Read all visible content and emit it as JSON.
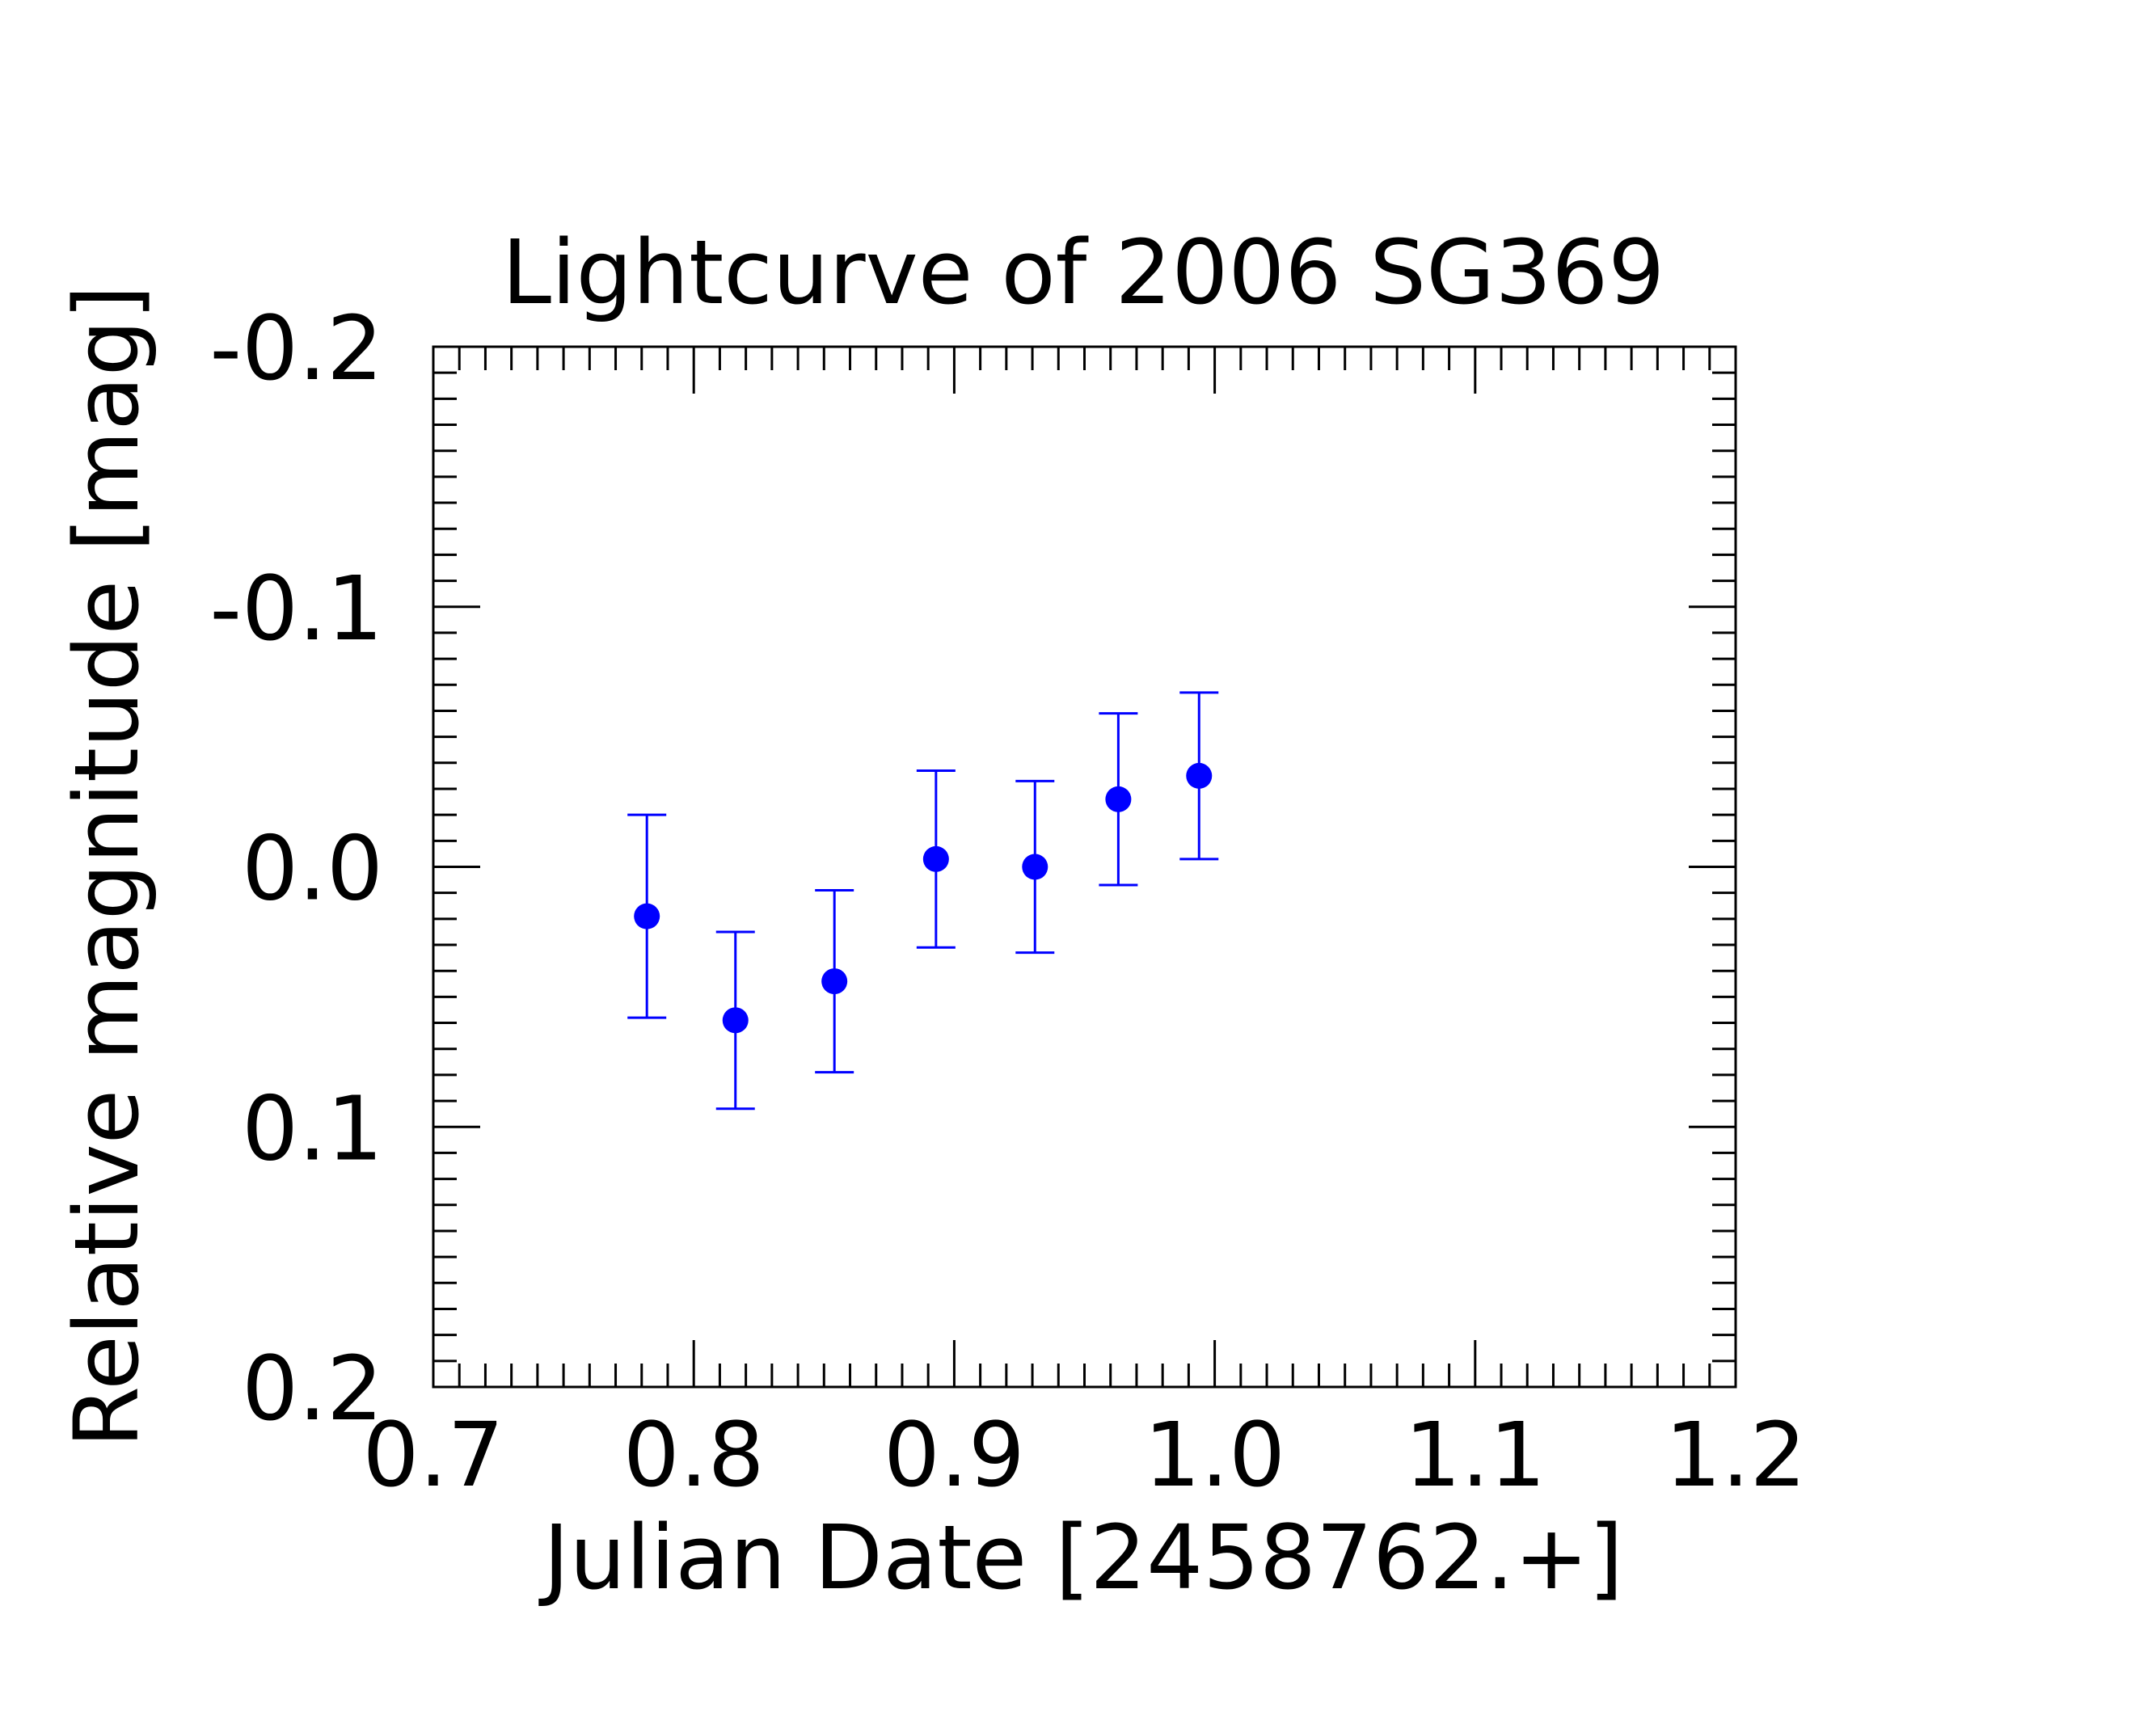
{
  "chart_data": {
    "type": "scatter",
    "title": "Lightcurve of 2006 SG369",
    "xlabel": "Julian Date [2458762.+]",
    "ylabel": "Relative magnitude [mag]",
    "xlim": [
      0.7,
      1.2
    ],
    "ylim": [
      0.2,
      -0.2
    ],
    "y_inverted": true,
    "grid": false,
    "legend": "none",
    "x_ticks": [
      "0.7",
      "0.8",
      "0.9",
      "1.0",
      "1.1",
      "1.2"
    ],
    "y_ticks": [
      "-0.2",
      "-0.1",
      "0.0",
      "0.1",
      "0.2"
    ],
    "marker_color": "#0000ff",
    "series": [
      {
        "x": [
          0.782,
          0.816,
          0.854,
          0.893,
          0.931,
          0.963,
          0.994
        ],
        "y": [
          0.019,
          0.059,
          0.044,
          -0.003,
          0.0,
          -0.026,
          -0.035
        ],
        "err": [
          0.039,
          0.034,
          0.035,
          0.034,
          0.033,
          0.033,
          0.032
        ]
      }
    ]
  }
}
